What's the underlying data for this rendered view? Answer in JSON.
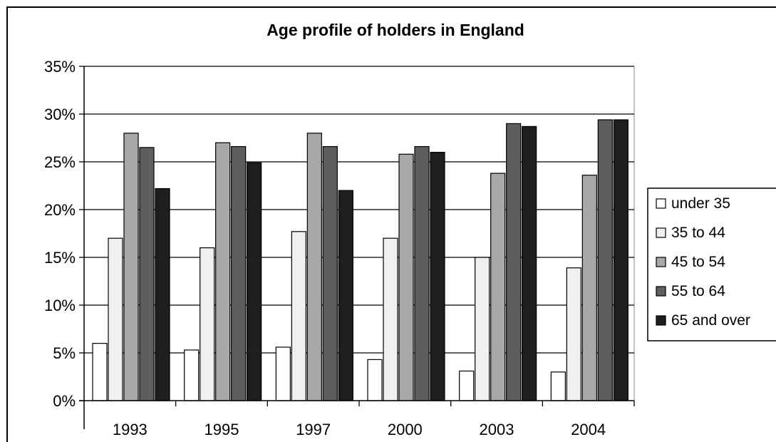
{
  "chart_data": {
    "type": "bar",
    "title": "Age profile of holders in England",
    "xlabel": "",
    "ylabel": "",
    "categories": [
      "1993",
      "1995",
      "1997",
      "2000",
      "2003",
      "2004"
    ],
    "y_ticks": [
      "0%",
      "5%",
      "10%",
      "15%",
      "20%",
      "25%",
      "30%",
      "35%"
    ],
    "ylim": [
      0,
      35
    ],
    "unit": "%",
    "grid": true,
    "legend_position": "right",
    "series": [
      {
        "name": "under 35",
        "color": "#ffffff",
        "values": [
          6,
          5.3,
          5.6,
          4.3,
          3.1,
          3
        ]
      },
      {
        "name": "35 to 44",
        "color": "#f0f0f0",
        "values": [
          17,
          16,
          17.7,
          17,
          15,
          13.9
        ]
      },
      {
        "name": "45 to 54",
        "color": "#a8a8a8",
        "values": [
          28,
          27,
          28,
          25.8,
          23.8,
          23.6
        ]
      },
      {
        "name": "55 to 64",
        "color": "#5e5e5e",
        "values": [
          26.5,
          26.6,
          26.6,
          26.6,
          29,
          29.4
        ]
      },
      {
        "name": "65 and over",
        "color": "#1e1e1e",
        "values": [
          22.2,
          24.9,
          22,
          26,
          28.7,
          29.4
        ]
      }
    ]
  }
}
